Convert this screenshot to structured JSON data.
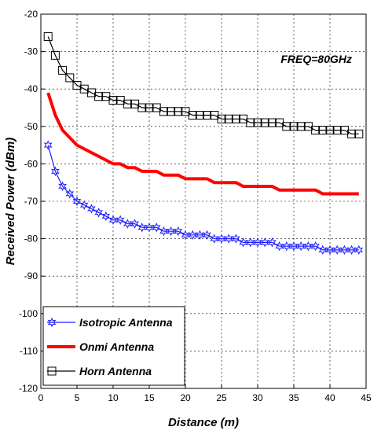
{
  "chart_data": {
    "type": "line",
    "title": "",
    "annotation": "FREQ=80GHz",
    "xlabel": "Distance (m)",
    "ylabel": "Received Power (dBm)",
    "xlim": [
      0,
      45
    ],
    "ylim": [
      -120,
      -20
    ],
    "xticks": [
      0,
      5,
      10,
      15,
      20,
      25,
      30,
      35,
      40,
      45
    ],
    "yticks": [
      -20,
      -30,
      -40,
      -50,
      -60,
      -70,
      -80,
      -90,
      -100,
      -110,
      -120
    ],
    "grid": true,
    "legend_position": "bottom-left",
    "x": [
      1,
      2,
      3,
      4,
      5,
      6,
      7,
      8,
      9,
      10,
      11,
      12,
      13,
      14,
      15,
      16,
      17,
      18,
      19,
      20,
      21,
      22,
      23,
      24,
      25,
      26,
      27,
      28,
      29,
      30,
      31,
      32,
      33,
      34,
      35,
      36,
      37,
      38,
      39,
      40,
      41,
      42,
      43,
      44
    ],
    "series": [
      {
        "name": "Isotropic Antenna",
        "color": "#1f1fff",
        "marker": "star",
        "values": [
          -55,
          -62,
          -66,
          -68,
          -70,
          -71,
          -72,
          -73,
          -74,
          -75,
          -75,
          -76,
          -76,
          -77,
          -77,
          -77,
          -78,
          -78,
          -78,
          -79,
          -79,
          -79,
          -79,
          -80,
          -80,
          -80,
          -80,
          -81,
          -81,
          -81,
          -81,
          -81,
          -82,
          -82,
          -82,
          -82,
          -82,
          -82,
          -83,
          -83,
          -83,
          -83,
          -83,
          -83
        ]
      },
      {
        "name": "Onmi Antenna",
        "color": "#ff0000",
        "marker": "none",
        "values": [
          -41,
          -47,
          -51,
          -53,
          -55,
          -56,
          -57,
          -58,
          -59,
          -60,
          -60,
          -61,
          -61,
          -62,
          -62,
          -62,
          -63,
          -63,
          -63,
          -64,
          -64,
          -64,
          -64,
          -65,
          -65,
          -65,
          -65,
          -66,
          -66,
          -66,
          -66,
          -66,
          -67,
          -67,
          -67,
          -67,
          -67,
          -67,
          -68,
          -68,
          -68,
          -68,
          -68,
          -68
        ]
      },
      {
        "name": "Horn Antenna",
        "color": "#000000",
        "marker": "square",
        "values": [
          -26,
          -31,
          -35,
          -37,
          -39,
          -40,
          -41,
          -42,
          -42,
          -43,
          -43,
          -44,
          -44,
          -45,
          -45,
          -45,
          -46,
          -46,
          -46,
          -46,
          -47,
          -47,
          -47,
          -47,
          -48,
          -48,
          -48,
          -48,
          -49,
          -49,
          -49,
          -49,
          -49,
          -50,
          -50,
          -50,
          -50,
          -51,
          -51,
          -51,
          -51,
          -51,
          -52,
          -52
        ]
      }
    ]
  }
}
